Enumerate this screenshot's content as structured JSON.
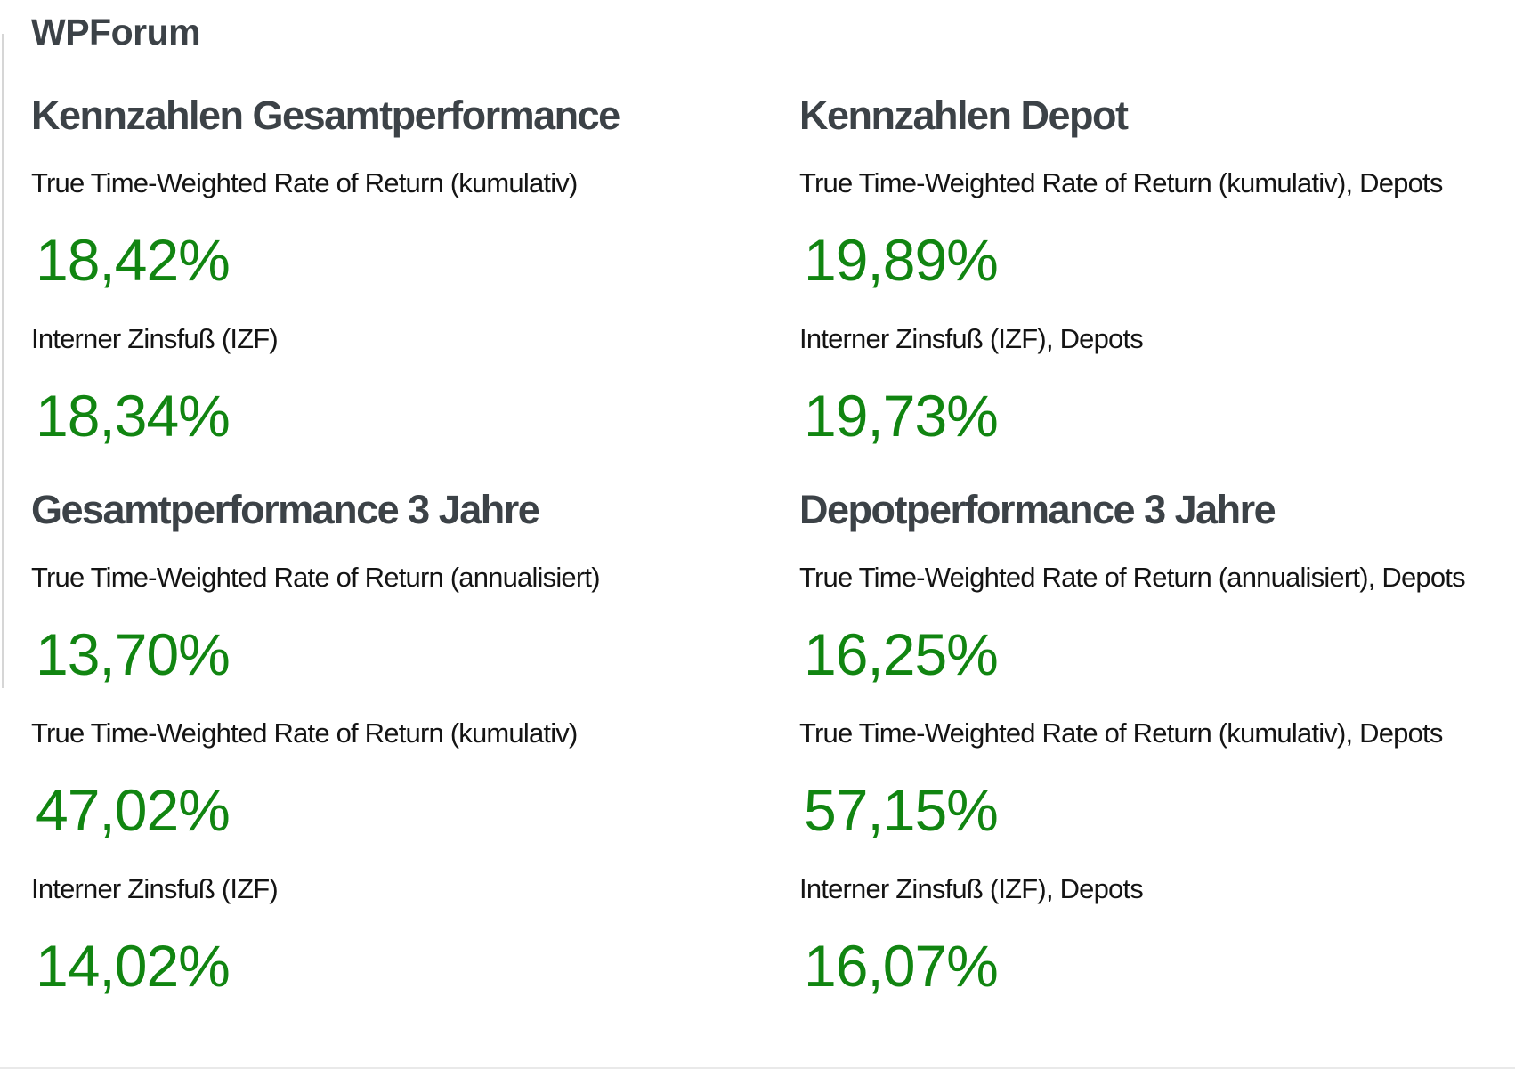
{
  "page": {
    "title": "WPForum"
  },
  "colors": {
    "value_green": "#118511",
    "heading_gray": "#3c4247",
    "label_black": "#141414",
    "left_rule_gray": "#d6d6d6"
  },
  "columns": [
    {
      "sections": [
        {
          "heading": "Kennzahlen Gesamtperformance",
          "metrics": [
            {
              "label": "True Time-Weighted Rate of Return (kumulativ)",
              "value": "18,42%"
            },
            {
              "label": "Interner Zinsfuß (IZF)",
              "value": "18,34%"
            }
          ]
        },
        {
          "heading": "Gesamtperformance 3 Jahre",
          "metrics": [
            {
              "label": "True Time-Weighted Rate of Return (annualisiert)",
              "value": "13,70%"
            },
            {
              "label": "True Time-Weighted Rate of Return (kumulativ)",
              "value": "47,02%"
            },
            {
              "label": "Interner Zinsfuß (IZF)",
              "value": "14,02%"
            }
          ]
        }
      ]
    },
    {
      "sections": [
        {
          "heading": "Kennzahlen Depot",
          "metrics": [
            {
              "label": "True Time-Weighted Rate of Return (kumulativ), Depots",
              "value": "19,89%"
            },
            {
              "label": "Interner Zinsfuß (IZF), Depots",
              "value": "19,73%"
            }
          ]
        },
        {
          "heading": "Depotperformance 3 Jahre",
          "metrics": [
            {
              "label": "True Time-Weighted Rate of Return (annualisiert), Depots",
              "value": "16,25%"
            },
            {
              "label": "True Time-Weighted Rate of Return (kumulativ), Depots",
              "value": "57,15%"
            },
            {
              "label": "Interner Zinsfuß (IZF), Depots",
              "value": "16,07%"
            }
          ]
        }
      ]
    }
  ]
}
